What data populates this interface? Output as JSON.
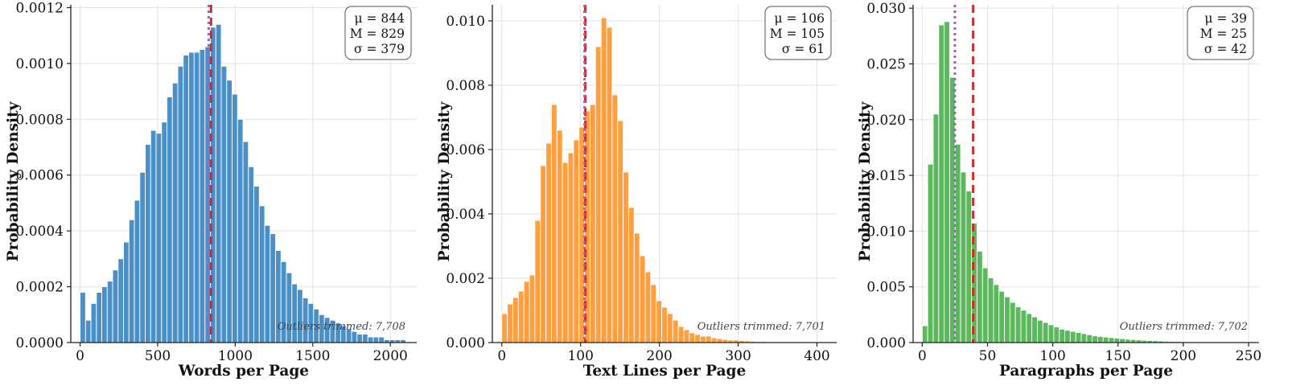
{
  "chart_data": [
    {
      "type": "bar",
      "xlabel": "Words per Page",
      "ylabel": "Probability Density",
      "xlim": [
        -60,
        2170
      ],
      "ylim": [
        0,
        0.00121
      ],
      "xticks": [
        0,
        500,
        1000,
        1500,
        2000
      ],
      "xtick_labels": [
        "0",
        "500",
        "1000",
        "1500",
        "2000"
      ],
      "yticks": [
        0,
        0.0002,
        0.0004,
        0.0006,
        0.0008,
        0.001,
        0.0012
      ],
      "ytick_labels": [
        "0.0000",
        "0.0002",
        "0.0004",
        "0.0006",
        "0.0008",
        "0.0010",
        "0.0012"
      ],
      "grid": true,
      "bar_color": "#4a90c6",
      "bin_start": 0,
      "bin_width": 35,
      "values": [
        0.00018,
        8e-05,
        0.00014,
        0.00018,
        0.0002,
        0.00022,
        0.00026,
        0.0003,
        0.00036,
        0.00044,
        0.00051,
        0.00061,
        0.00071,
        0.00076,
        0.00075,
        0.00079,
        0.00088,
        0.00093,
        0.00099,
        0.00103,
        0.00104,
        0.00104,
        0.00105,
        0.00106,
        0.00113,
        0.00114,
        0.00099,
        0.00094,
        0.00089,
        0.0008,
        0.00072,
        0.00063,
        0.00056,
        0.00049,
        0.00042,
        0.00039,
        0.00033,
        0.00029,
        0.00025,
        0.00021,
        0.00019,
        0.00016,
        0.00014,
        0.00012,
        0.0001,
        9e-05,
        8e-05,
        7e-05,
        6e-05,
        5e-05,
        4e-05,
        3e-05,
        3e-05,
        2e-05,
        2e-05,
        2e-05,
        1e-05,
        1e-05,
        1e-05,
        1e-05
      ],
      "mean": 844,
      "median": 829,
      "mean_color": "#d62728",
      "median_color": "#9467bd",
      "stats_text": [
        "μ = 844",
        "M = 829",
        "σ = 379"
      ],
      "note": "Outliers trimmed: 7,708"
    },
    {
      "type": "bar",
      "xlabel": "Text Lines per Page",
      "ylabel": "Probability Density",
      "xlim": [
        -12,
        425
      ],
      "ylim": [
        0,
        0.0105
      ],
      "xticks": [
        0,
        100,
        200,
        300,
        400
      ],
      "xtick_labels": [
        "0",
        "100",
        "200",
        "300",
        "400"
      ],
      "yticks": [
        0,
        0.002,
        0.004,
        0.006,
        0.008,
        0.01
      ],
      "ytick_labels": [
        "0.000",
        "0.002",
        "0.004",
        "0.006",
        "0.008",
        "0.010"
      ],
      "grid": true,
      "bar_color": "#ff9f40",
      "bin_start": 0,
      "bin_width": 7,
      "values": [
        0.0009,
        0.0012,
        0.0014,
        0.0016,
        0.0019,
        0.0021,
        0.0038,
        0.0055,
        0.0062,
        0.0074,
        0.0066,
        0.0056,
        0.0059,
        0.0063,
        0.0067,
        0.0072,
        0.0074,
        0.0092,
        0.0101,
        0.0098,
        0.0077,
        0.0069,
        0.0053,
        0.0042,
        0.0034,
        0.0027,
        0.0022,
        0.0018,
        0.0013,
        0.0011,
        0.0009,
        0.0007,
        0.0005,
        0.0004,
        0.0003,
        0.00025,
        0.0002,
        0.0002,
        0.00015,
        0.00012,
        0.0001,
        8e-05,
        8e-05,
        6e-05,
        5e-05,
        4e-05,
        3e-05,
        3e-05,
        2e-05,
        2e-05,
        2e-05,
        1e-05,
        1e-05,
        1e-05,
        1e-05,
        1e-05,
        1e-05,
        1e-05
      ],
      "mean": 106,
      "median": 105,
      "mean_color": "#d62728",
      "median_color": "#9467bd",
      "stats_text": [
        "μ = 106",
        "M = 105",
        "σ = 61"
      ],
      "note": "Outliers trimmed: 7,701"
    },
    {
      "type": "bar",
      "xlabel": "Paragraphs per Page",
      "ylabel": "Probability Density",
      "xlim": [
        -7,
        258
      ],
      "ylim": [
        0,
        0.0303
      ],
      "xticks": [
        0,
        50,
        100,
        150,
        200,
        250
      ],
      "xtick_labels": [
        "0",
        "50",
        "100",
        "150",
        "200",
        "250"
      ],
      "yticks": [
        0,
        0.005,
        0.01,
        0.015,
        0.02,
        0.025,
        0.03
      ],
      "ytick_labels": [
        "0.000",
        "0.005",
        "0.010",
        "0.015",
        "0.020",
        "0.025",
        "0.030"
      ],
      "grid": true,
      "bar_color": "#5cb85c",
      "bin_start": 0,
      "bin_width": 4.2,
      "values": [
        0.0015,
        0.016,
        0.0205,
        0.0285,
        0.0288,
        0.0238,
        0.0178,
        0.0153,
        0.0136,
        0.0107,
        0.0082,
        0.0067,
        0.0058,
        0.0052,
        0.0046,
        0.0041,
        0.0036,
        0.0032,
        0.0029,
        0.0026,
        0.0023,
        0.002,
        0.0018,
        0.0016,
        0.0014,
        0.0012,
        0.0011,
        0.001,
        0.0009,
        0.0008,
        0.0007,
        0.0006,
        0.00055,
        0.0005,
        0.00045,
        0.0004,
        0.00035,
        0.0003,
        0.00027,
        0.00024,
        0.0002,
        0.00018,
        0.00016,
        0.00014,
        0.00012,
        0.0001,
        9e-05,
        8e-05,
        7e-05,
        6e-05,
        5e-05,
        4e-05,
        4e-05,
        3e-05,
        3e-05,
        2e-05,
        2e-05,
        2e-05,
        1e-05
      ],
      "mean": 39,
      "median": 25,
      "mean_color": "#d62728",
      "median_color": "#9467bd",
      "stats_text": [
        "μ = 39",
        "M = 25",
        "σ = 42"
      ],
      "note": "Outliers trimmed: 7,702"
    }
  ]
}
